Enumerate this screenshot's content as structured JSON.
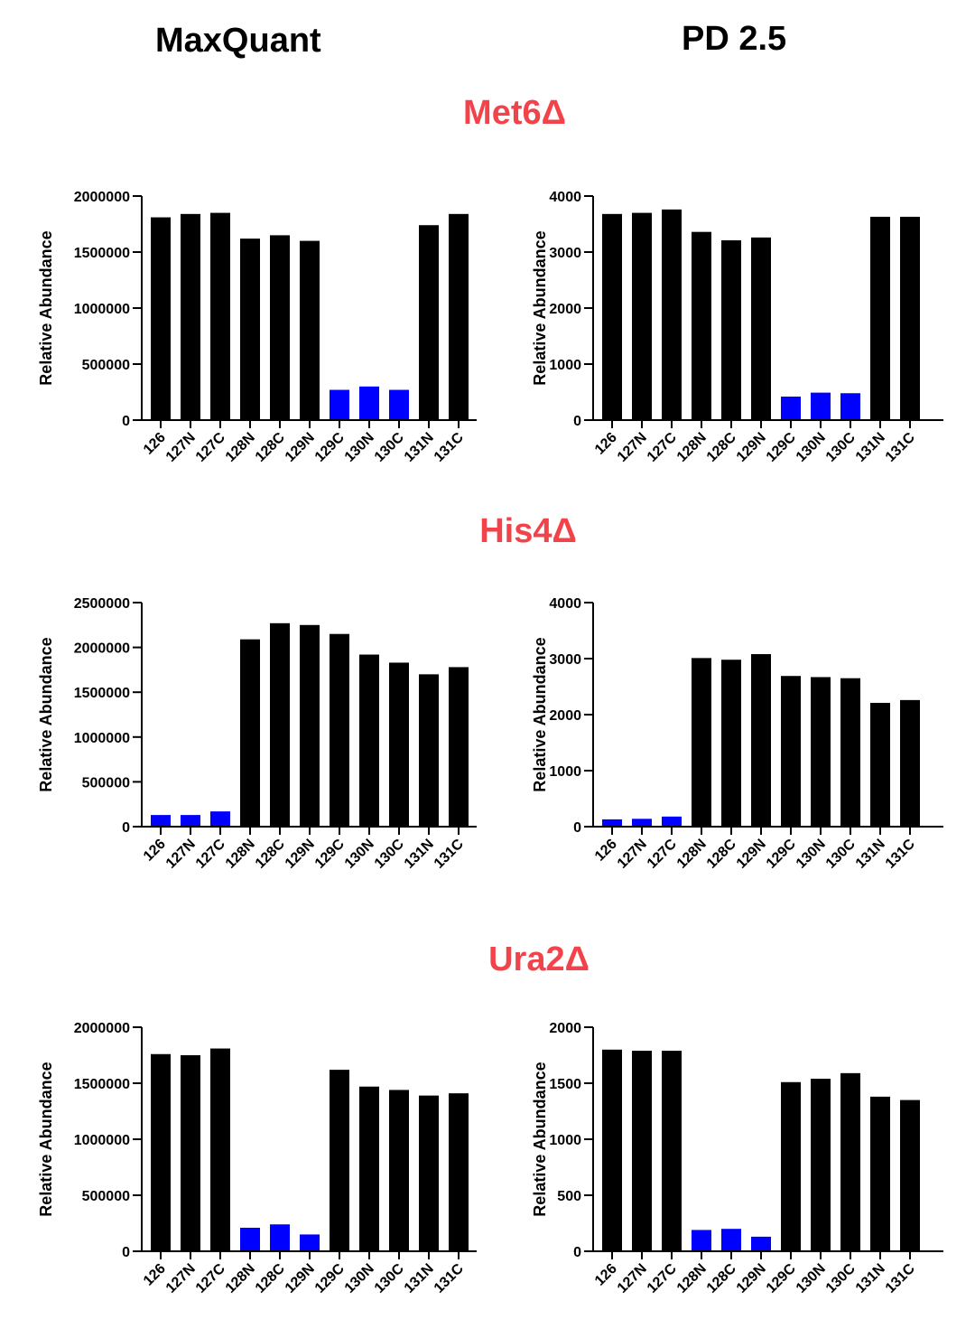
{
  "titles": {
    "left_column": "MaxQuant",
    "right_column": "PD 2.5"
  },
  "rows": [
    {
      "title": "Met6Δ"
    },
    {
      "title": "His4Δ"
    },
    {
      "title": "Ura2Δ"
    }
  ],
  "colors": {
    "bar_default": "#000000",
    "bar_highlight": "#0000ff",
    "row_title": "#f2434a"
  },
  "chart_data": [
    {
      "type": "bar",
      "id": "met6-maxquant",
      "title": "",
      "xlabel": "",
      "ylabel": "Relative  Abundance",
      "categories": [
        "126",
        "127N",
        "127C",
        "128N",
        "128C",
        "129N",
        "129C",
        "130N",
        "130C",
        "131N",
        "131C"
      ],
      "values": [
        1810000,
        1840000,
        1850000,
        1620000,
        1650000,
        1600000,
        270000,
        300000,
        270000,
        1740000,
        1840000
      ],
      "highlight": [
        6,
        7,
        8
      ],
      "ylim": [
        0,
        2000000
      ],
      "yticks": [
        0,
        500000,
        1000000,
        1500000,
        2000000
      ],
      "ytick_labels": [
        "0",
        "500000",
        "1000000",
        "1500000",
        "2000000"
      ]
    },
    {
      "type": "bar",
      "id": "met6-pd",
      "title": "",
      "xlabel": "",
      "ylabel": "Relative  Abundance",
      "categories": [
        "126",
        "127N",
        "127C",
        "128N",
        "128C",
        "129N",
        "129C",
        "130N",
        "130C",
        "131N",
        "131C"
      ],
      "values": [
        3680,
        3700,
        3760,
        3360,
        3210,
        3260,
        420,
        490,
        480,
        3630,
        3630
      ],
      "highlight": [
        6,
        7,
        8
      ],
      "ylim": [
        0,
        4000
      ],
      "yticks": [
        0,
        1000,
        2000,
        3000,
        4000
      ],
      "ytick_labels": [
        "0",
        "1000",
        "2000",
        "3000",
        "4000"
      ]
    },
    {
      "type": "bar",
      "id": "his4-maxquant",
      "title": "",
      "xlabel": "",
      "ylabel": "Relative  Abundance",
      "categories": [
        "126",
        "127N",
        "127C",
        "128N",
        "128C",
        "129N",
        "129C",
        "130N",
        "130C",
        "131N",
        "131C"
      ],
      "values": [
        130000,
        130000,
        170000,
        2090000,
        2270000,
        2250000,
        2150000,
        1920000,
        1830000,
        1700000,
        1780000
      ],
      "highlight": [
        0,
        1,
        2
      ],
      "ylim": [
        0,
        2500000
      ],
      "yticks": [
        0,
        500000,
        1000000,
        1500000,
        2000000,
        2500000
      ],
      "ytick_labels": [
        "0",
        "500000",
        "1000000",
        "1500000",
        "2000000",
        "2500000"
      ]
    },
    {
      "type": "bar",
      "id": "his4-pd",
      "title": "",
      "xlabel": "",
      "ylabel": "Relative  Abundance",
      "categories": [
        "126",
        "127N",
        "127C",
        "128N",
        "128C",
        "129N",
        "129C",
        "130N",
        "130C",
        "131N",
        "131C"
      ],
      "values": [
        130,
        140,
        180,
        3010,
        2980,
        3080,
        2690,
        2670,
        2650,
        2210,
        2260
      ],
      "highlight": [
        0,
        1,
        2
      ],
      "ylim": [
        0,
        4000
      ],
      "yticks": [
        0,
        1000,
        2000,
        3000,
        4000
      ],
      "ytick_labels": [
        "0",
        "1000",
        "2000",
        "3000",
        "4000"
      ]
    },
    {
      "type": "bar",
      "id": "ura2-maxquant",
      "title": "",
      "xlabel": "",
      "ylabel": "Relative  Abundance",
      "categories": [
        "126",
        "127N",
        "127C",
        "128N",
        "128C",
        "129N",
        "129C",
        "130N",
        "130C",
        "131N",
        "131C"
      ],
      "values": [
        1760000,
        1750000,
        1810000,
        210000,
        240000,
        150000,
        1620000,
        1470000,
        1440000,
        1390000,
        1410000
      ],
      "highlight": [
        3,
        4,
        5
      ],
      "ylim": [
        0,
        2000000
      ],
      "yticks": [
        0,
        500000,
        1000000,
        1500000,
        2000000
      ],
      "ytick_labels": [
        "0",
        "500000",
        "1000000",
        "1500000",
        "2000000"
      ]
    },
    {
      "type": "bar",
      "id": "ura2-pd",
      "title": "",
      "xlabel": "",
      "ylabel": "Relative  Abundance",
      "categories": [
        "126",
        "127N",
        "127C",
        "128N",
        "128C",
        "129N",
        "129C",
        "130N",
        "130C",
        "131N",
        "131C"
      ],
      "values": [
        1800,
        1790,
        1790,
        190,
        200,
        130,
        1510,
        1540,
        1590,
        1380,
        1350
      ],
      "highlight": [
        3,
        4,
        5
      ],
      "ylim": [
        0,
        2000
      ],
      "yticks": [
        0,
        500,
        1000,
        1500,
        2000
      ],
      "ytick_labels": [
        "0",
        "500",
        "1000",
        "1500",
        "2000"
      ]
    }
  ]
}
